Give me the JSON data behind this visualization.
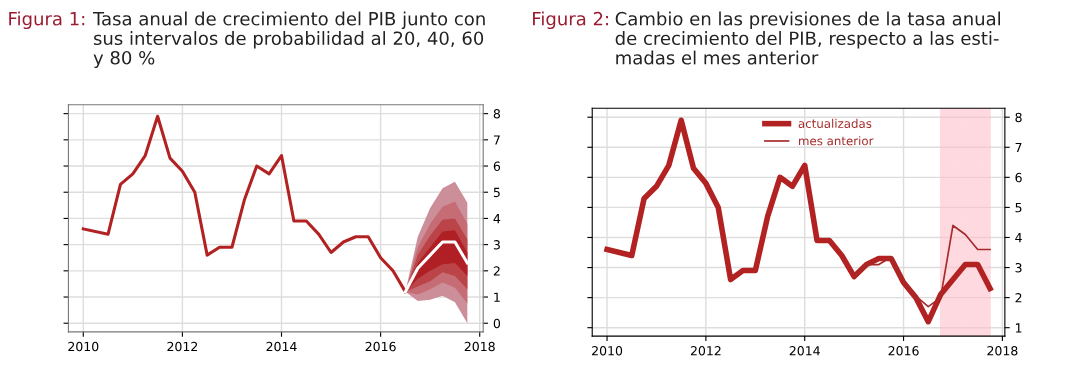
{
  "chart_data": [
    {
      "type": "line",
      "title": "Figura 1:",
      "subtitle": "Tasa anual de crecimiento del PIB junto con\nsus intervalos de probabilidad al 20, 40, 60\ny 80 %",
      "series": [
        {
          "type": "line",
          "color": "#cc8f99",
          "x": [
            2016.5,
            2016.75,
            2017.0,
            2017.25,
            2017.5,
            2017.75
          ],
          "values": [
            null,
            null,
            null,
            null,
            null,
            null
          ],
          "upper": [
            1.2,
            3.3,
            4.4,
            5.15,
            5.4,
            4.6
          ],
          "lower": [
            1.2,
            0.85,
            0.9,
            1.05,
            0.8,
            0.0
          ]
        },
        {
          "type": "line",
          "color": "#c66c74",
          "x": [
            2016.5,
            2016.75,
            2017.0,
            2017.25,
            2017.5,
            2017.75
          ],
          "values": [
            null,
            null,
            null,
            null,
            null,
            null
          ],
          "upper": [
            1.2,
            2.9,
            3.8,
            4.45,
            4.65,
            3.8
          ],
          "lower": [
            1.2,
            1.1,
            1.3,
            1.55,
            1.35,
            0.75
          ]
        },
        {
          "type": "line",
          "color": "#bb4449",
          "x": [
            2016.5,
            2016.75,
            2017.0,
            2017.25,
            2017.5,
            2017.75
          ],
          "values": [
            null,
            null,
            null,
            null,
            null,
            null
          ],
          "upper": [
            1.2,
            2.6,
            3.35,
            3.95,
            4.0,
            3.2
          ],
          "lower": [
            1.2,
            1.4,
            1.6,
            1.95,
            1.8,
            1.3
          ]
        },
        {
          "type": "line",
          "color": "#b01f23",
          "x": [
            2016.5,
            2016.75,
            2017.0,
            2017.25,
            2017.5,
            2017.75
          ],
          "values": [
            null,
            null,
            null,
            null,
            null,
            null
          ],
          "upper": [
            1.2,
            2.3,
            2.9,
            3.5,
            3.55,
            2.7
          ],
          "lower": [
            1.2,
            1.7,
            2.0,
            2.25,
            2.3,
            1.8
          ]
        },
        {
          "type": "line",
          "color": "#b22222",
          "x": [
            2010.0,
            2010.5,
            2010.75,
            2011.0,
            2011.25,
            2011.5,
            2011.75,
            2012.0,
            2012.25,
            2012.5,
            2012.75,
            2013.0,
            2013.25,
            2013.5,
            2013.75,
            2014.0,
            2014.25,
            2014.5,
            2014.75,
            2015.0,
            2015.25,
            2015.5,
            2015.75,
            2016.0,
            2016.25,
            2016.5
          ],
          "values": [
            3.6,
            3.4,
            5.3,
            5.7,
            6.4,
            7.9,
            6.3,
            5.8,
            5.0,
            2.6,
            2.9,
            2.9,
            4.7,
            6.0,
            5.7,
            6.4,
            3.9,
            3.9,
            3.4,
            2.7,
            3.1,
            3.3,
            3.3,
            2.5,
            2.0,
            1.2
          ]
        },
        {
          "type": "line",
          "color": "#ffffff",
          "x": [
            2016.5,
            2016.75,
            2017.0,
            2017.25,
            2017.5,
            2017.75
          ],
          "values": [
            1.2,
            2.1,
            2.6,
            3.1,
            3.1,
            2.3
          ]
        }
      ],
      "xlim": [
        2009.7,
        2018.07
      ],
      "xticks": [
        2010,
        2012,
        2014,
        2016,
        2018
      ],
      "ylim": [
        -0.33,
        8.34
      ],
      "yticks": [
        0,
        1,
        2,
        3,
        4,
        5,
        6,
        7,
        8
      ],
      "grid": true,
      "legend": false
    },
    {
      "type": "line",
      "title": "Figura 2:",
      "subtitle": "Cambio en las previsiones de la tasa anual\nde crecimiento del PIB, respecto a las esti-\nmadas el mes anterior",
      "series": [
        {
          "name": "actualizadas",
          "color": "#b22222",
          "x": [
            2010.0,
            2010.5,
            2010.75,
            2011.0,
            2011.25,
            2011.5,
            2011.75,
            2012.0,
            2012.25,
            2012.5,
            2012.75,
            2013.0,
            2013.25,
            2013.5,
            2013.75,
            2014.0,
            2014.25,
            2014.5,
            2014.75,
            2015.0,
            2015.25,
            2015.5,
            2015.75,
            2016.0,
            2016.25,
            2016.5,
            2016.75,
            2017.0,
            2017.25,
            2017.5,
            2017.75
          ],
          "values": [
            3.6,
            3.4,
            5.3,
            5.7,
            6.4,
            7.9,
            6.3,
            5.8,
            5.0,
            2.6,
            2.9,
            2.9,
            4.7,
            6.0,
            5.7,
            6.4,
            3.9,
            3.9,
            3.4,
            2.7,
            3.1,
            3.3,
            3.3,
            2.5,
            2.0,
            1.2,
            2.1,
            2.6,
            3.1,
            3.1,
            2.3
          ]
        },
        {
          "name": "mes anterior",
          "color": "#a52a2a",
          "x": [
            2015.0,
            2015.25,
            2015.5,
            2015.75,
            2016.0,
            2016.25,
            2016.5,
            2016.75,
            2017.0,
            2017.25,
            2017.5,
            2017.75
          ],
          "values": [
            2.7,
            3.1,
            3.1,
            3.35,
            2.5,
            2.05,
            1.7,
            2.0,
            4.4,
            4.1,
            3.6,
            3.6
          ]
        }
      ],
      "bands": [
        {
          "axis": "x",
          "from": 2016.75,
          "to": 2017.75,
          "color": "#ffc0cb"
        }
      ],
      "xlim": [
        2009.7,
        2018.05
      ],
      "xticks": [
        2010,
        2012,
        2014,
        2016,
        2018
      ],
      "ylim": [
        0.72,
        8.3
      ],
      "yticks": [
        1,
        2,
        3,
        4,
        5,
        6,
        7,
        8
      ],
      "grid": true,
      "legend": "top"
    }
  ]
}
